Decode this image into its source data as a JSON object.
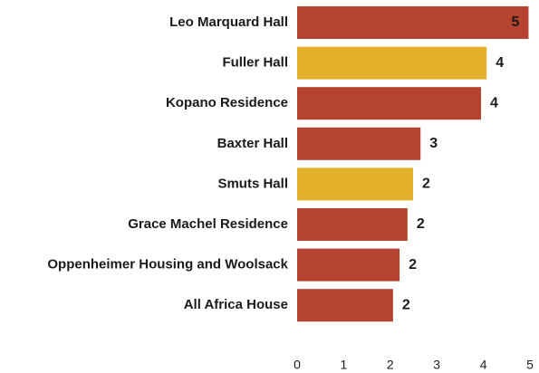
{
  "chart_data": {
    "type": "hbar",
    "categories": [
      "Leo Marquard Hall",
      "Fuller Hall",
      "Kopano Residence",
      "Baxter Hall",
      "Smuts Hall",
      "Grace Machel Residence",
      "Oppenheimer Housing and Woolsack",
      "All Africa House"
    ],
    "values": [
      4.97,
      4.07,
      3.95,
      2.65,
      2.49,
      2.37,
      2.2,
      2.06
    ],
    "value_labels": [
      "5",
      "4",
      "4",
      "3",
      "2",
      "2",
      "2",
      "2"
    ],
    "colors": [
      "#b5432f",
      "#e2b02a",
      "#b5432f",
      "#b5432f",
      "#e2b02a",
      "#b5432f",
      "#b5432f",
      "#b5432f"
    ],
    "xlim": [
      0,
      5
    ],
    "xticks": [
      0,
      1,
      2,
      3,
      4,
      5
    ]
  }
}
